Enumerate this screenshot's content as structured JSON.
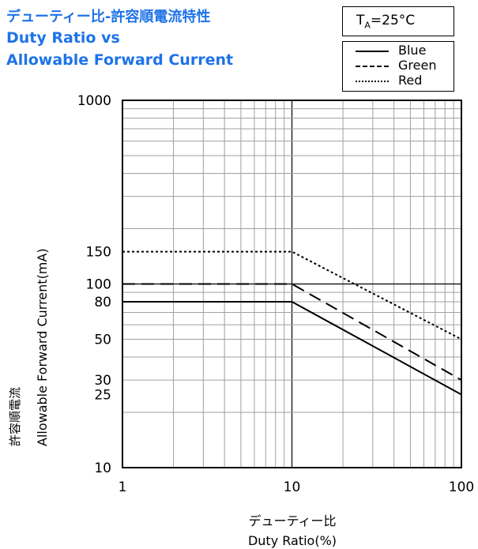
{
  "title": {
    "jp": "デューティー比-許容順電流特性",
    "en_line1": "Duty Ratio vs",
    "en_line2": "Allowable Forward Current"
  },
  "condition": {
    "label": "T",
    "sub": "A",
    "value": "=25°C"
  },
  "colors": {
    "title": "#1e73e8",
    "line": "#000000",
    "grid": "#a0a0a0"
  },
  "chart_data": {
    "type": "line",
    "x_scale": "log",
    "y_scale": "log",
    "xlim": [
      1,
      100
    ],
    "ylim": [
      10,
      1000
    ],
    "xlabel_jp": "デューティー比",
    "xlabel": "Duty Ratio(%)",
    "ylabel_jp": "許容順電流",
    "ylabel": "Allowable Forward Current(mA)",
    "x_ticks": [
      "1",
      "10",
      "100"
    ],
    "y_ticks": [
      "10",
      "25",
      "30",
      "50",
      "80",
      "100",
      "150",
      "1000"
    ],
    "y_tick_values": [
      10,
      25,
      30,
      50,
      80,
      100,
      150,
      1000
    ],
    "grid": true,
    "legend_position": "top-right",
    "series": [
      {
        "name": "Blue",
        "style": "solid",
        "points": [
          [
            1,
            80
          ],
          [
            10,
            80
          ],
          [
            100,
            25
          ]
        ]
      },
      {
        "name": "Green",
        "style": "dashed",
        "points": [
          [
            1,
            100
          ],
          [
            10,
            100
          ],
          [
            100,
            30
          ]
        ]
      },
      {
        "name": "Red",
        "style": "dotted",
        "points": [
          [
            1,
            150
          ],
          [
            10,
            150
          ],
          [
            100,
            50
          ]
        ]
      }
    ]
  }
}
